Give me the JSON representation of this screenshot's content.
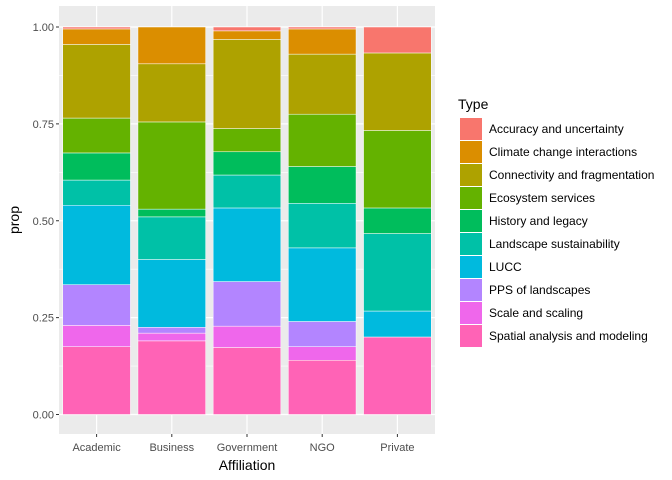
{
  "chart_data": {
    "type": "bar",
    "stacked": true,
    "xlabel": "Affiliation",
    "ylabel": "prop",
    "ylim": [
      0,
      1.03
    ],
    "yticks": [
      "0.00",
      "0.25",
      "0.50",
      "0.75",
      "1.00"
    ],
    "categories": [
      "Academic",
      "Business",
      "Government",
      "NGO",
      "Private"
    ],
    "legend_title": "Type",
    "legend_position": "right",
    "grid": true,
    "series": [
      {
        "name": "Accuracy and uncertainty",
        "color": "#F8766D",
        "values": [
          0.005,
          0.0,
          0.01,
          0.005,
          0.067
        ]
      },
      {
        "name": "Climate change interactions",
        "color": "#DB8E00",
        "values": [
          0.04,
          0.095,
          0.022,
          0.065,
          0.0
        ]
      },
      {
        "name": "Connectivity and fragmentation",
        "color": "#AEA200",
        "values": [
          0.19,
          0.15,
          0.23,
          0.155,
          0.2
        ]
      },
      {
        "name": "Ecosystem services",
        "color": "#64B200",
        "values": [
          0.09,
          0.225,
          0.06,
          0.135,
          0.2
        ]
      },
      {
        "name": "History and legacy",
        "color": "#00BD5C",
        "values": [
          0.07,
          0.02,
          0.06,
          0.095,
          0.066
        ]
      },
      {
        "name": "Landscape sustainability",
        "color": "#00C1A7",
        "values": [
          0.065,
          0.11,
          0.085,
          0.115,
          0.2
        ]
      },
      {
        "name": "LUCC",
        "color": "#00BADE",
        "values": [
          0.205,
          0.175,
          0.19,
          0.19,
          0.067
        ]
      },
      {
        "name": "PPS of landscapes",
        "color": "#B385FF",
        "values": [
          0.105,
          0.015,
          0.115,
          0.065,
          0.0
        ]
      },
      {
        "name": "Scale and scaling",
        "color": "#EF67EB",
        "values": [
          0.055,
          0.02,
          0.055,
          0.035,
          0.0
        ]
      },
      {
        "name": "Spatial analysis and modeling",
        "color": "#FF63B6",
        "values": [
          0.175,
          0.19,
          0.173,
          0.14,
          0.2
        ]
      }
    ]
  }
}
